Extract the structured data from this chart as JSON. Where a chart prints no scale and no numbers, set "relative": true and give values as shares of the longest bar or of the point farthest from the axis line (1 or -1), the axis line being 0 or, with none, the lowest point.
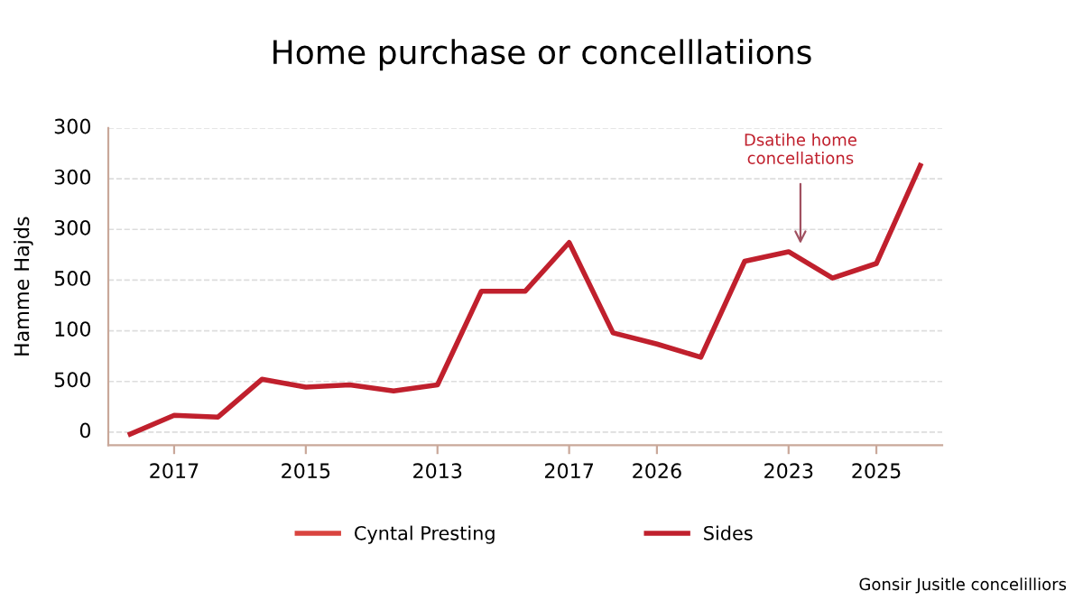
{
  "chart_data": {
    "type": "line",
    "title": "Home purchase or concelllatiions",
    "ylabel": "Hamme Hajds",
    "relative": true,
    "categories": [
      null,
      "2017",
      null,
      null,
      "2015",
      null,
      null,
      "2013",
      null,
      null,
      "2017",
      null,
      "2026",
      null,
      null,
      "2023",
      null,
      "2025",
      null
    ],
    "series": [
      {
        "name": "Cyntal Presting",
        "color": "#d9443f",
        "values": [
          null,
          null,
          null,
          null,
          null,
          null,
          null,
          null,
          null,
          null,
          null,
          null,
          null,
          null,
          null,
          null,
          null,
          null,
          null
        ]
      },
      {
        "name": "Sides",
        "color": "#c0202d",
        "values": [
          0.04,
          0.107,
          0.101,
          0.236,
          0.208,
          0.216,
          0.194,
          0.216,
          0.551,
          0.551,
          0.725,
          0.402,
          0.362,
          0.315,
          0.658,
          0.692,
          0.598,
          0.65,
          1.0
        ]
      }
    ],
    "annotations": [
      "Dsatihe home\nconcellations",
      "0",
      "500",
      "100",
      "500",
      "300",
      "300",
      "300",
      "Gonsir Jusitle concelilliors"
    ],
    "grid": "y",
    "legend": "bottom",
    "marker": "none",
    "line_style": "solid"
  }
}
